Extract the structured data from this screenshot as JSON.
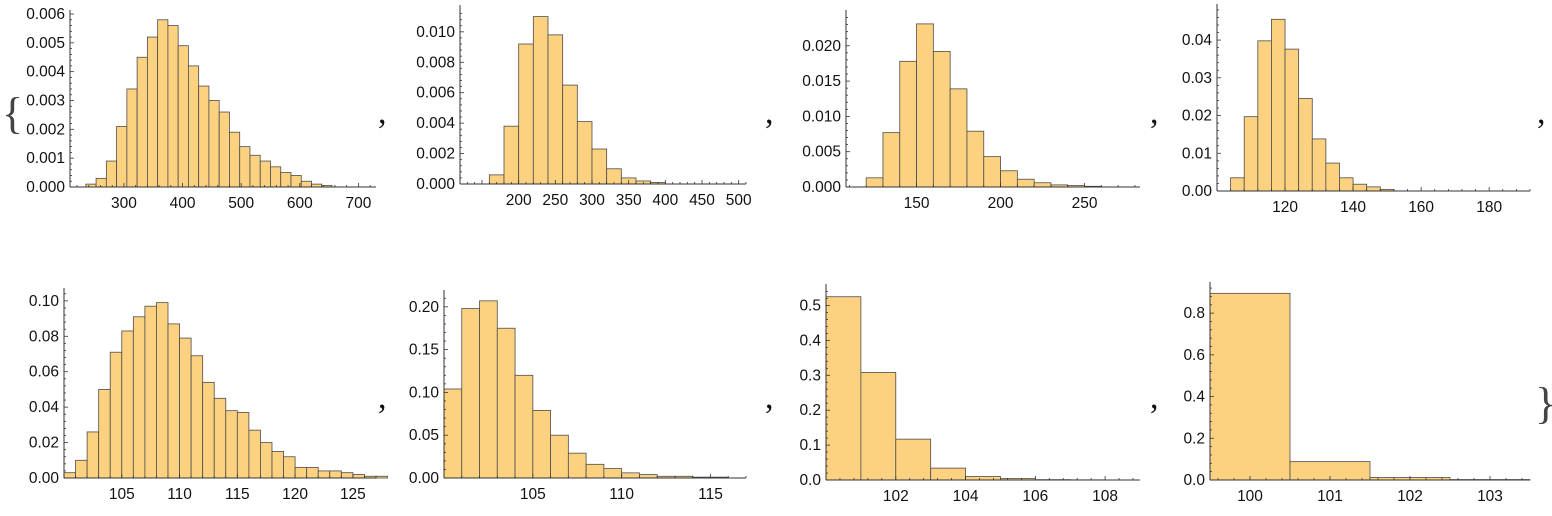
{
  "separators": {
    "comma": ",",
    "open_brace": "{",
    "close_brace": "}"
  },
  "colors": {
    "bar_fill": "#fcd17f",
    "bar_stroke": "#4d4d4d",
    "axis": "#333333"
  },
  "chart_data": [
    {
      "type": "bar",
      "bin_start": 235,
      "bin_width": 17.5,
      "values": [
        0.0001,
        0.0003,
        0.0009,
        0.0021,
        0.0034,
        0.0045,
        0.0052,
        0.0058,
        0.0056,
        0.0049,
        0.0042,
        0.0035,
        0.003,
        0.0026,
        0.0019,
        0.0014,
        0.0011,
        0.0009,
        0.0007,
        0.0005,
        0.0004,
        0.0002,
        0.0001,
        5e-05
      ],
      "xlim": [
        208,
        730
      ],
      "ylim": [
        0,
        0.006
      ],
      "xticks": [
        300,
        400,
        500,
        600,
        700
      ],
      "xtick_labels": [
        "300",
        "400",
        "500",
        "600",
        "700"
      ],
      "yticks": [
        0,
        0.001,
        0.002,
        0.003,
        0.004,
        0.005,
        0.006
      ],
      "ytick_labels": [
        "0.000",
        "0.001",
        "0.002",
        "0.003",
        "0.004",
        "0.005",
        "0.006"
      ]
    },
    {
      "type": "bar",
      "bin_start": 160,
      "bin_width": 20,
      "values": [
        0.0006,
        0.0038,
        0.0092,
        0.011,
        0.0098,
        0.0065,
        0.0041,
        0.0023,
        0.001,
        0.0004,
        0.0002,
        0.0001
      ],
      "xlim": [
        120,
        510
      ],
      "ylim": [
        0,
        0.0115
      ],
      "xticks": [
        200,
        250,
        300,
        350,
        400,
        450,
        500
      ],
      "xtick_labels": [
        "200",
        "250",
        "300",
        "350",
        "400",
        "450",
        "500"
      ],
      "yticks": [
        0,
        0.002,
        0.004,
        0.006,
        0.008,
        0.01
      ],
      "ytick_labels": [
        "0.000",
        "0.002",
        "0.004",
        "0.006",
        "0.008",
        "0.010"
      ]
    },
    {
      "type": "bar",
      "bin_start": 120,
      "bin_width": 10,
      "values": [
        0.0013,
        0.0077,
        0.0178,
        0.0231,
        0.0192,
        0.0139,
        0.0079,
        0.0043,
        0.0023,
        0.0011,
        0.0006,
        0.0003,
        0.0002,
        0.0001
      ],
      "xlim": [
        108,
        283
      ],
      "ylim": [
        0,
        0.0245
      ],
      "xticks": [
        150,
        200,
        250
      ],
      "xtick_labels": [
        "150",
        "200",
        "250"
      ],
      "yticks": [
        0,
        0.005,
        0.01,
        0.015,
        0.02
      ],
      "ytick_labels": [
        "0.000",
        "0.005",
        "0.010",
        "0.015",
        "0.020"
      ]
    },
    {
      "type": "bar",
      "bin_start": 104,
      "bin_width": 4,
      "values": [
        0.0035,
        0.0197,
        0.0398,
        0.0455,
        0.0376,
        0.0245,
        0.0138,
        0.0074,
        0.0035,
        0.0018,
        0.0011,
        0.0004
      ],
      "xlim": [
        100,
        192
      ],
      "ylim": [
        0,
        0.0485
      ],
      "xticks": [
        120,
        140,
        160,
        180
      ],
      "xtick_labels": [
        "120",
        "140",
        "160",
        "180"
      ],
      "yticks": [
        0,
        0.01,
        0.02,
        0.03,
        0.04
      ],
      "ytick_labels": [
        "0.00",
        "0.01",
        "0.02",
        "0.03",
        "0.04"
      ]
    },
    {
      "type": "bar",
      "bin_start": 100,
      "bin_width": 1,
      "values": [
        0.003,
        0.01,
        0.026,
        0.05,
        0.071,
        0.083,
        0.091,
        0.097,
        0.099,
        0.087,
        0.079,
        0.069,
        0.054,
        0.045,
        0.038,
        0.037,
        0.027,
        0.02,
        0.015,
        0.012,
        0.006,
        0.006,
        0.004,
        0.004,
        0.003,
        0.002,
        0.001,
        0.001
      ],
      "xlim": [
        100,
        127
      ],
      "ylim": [
        0,
        0.105
      ],
      "xticks": [
        105,
        110,
        115,
        120,
        125
      ],
      "xtick_labels": [
        "105",
        "110",
        "115",
        "120",
        "125"
      ],
      "yticks": [
        0,
        0.02,
        0.04,
        0.06,
        0.08,
        0.1
      ],
      "ytick_labels": [
        "0.00",
        "0.02",
        "0.04",
        "0.06",
        "0.08",
        "0.10"
      ]
    },
    {
      "type": "bar",
      "bin_start": 100,
      "bin_width": 1,
      "values": [
        0.104,
        0.198,
        0.207,
        0.175,
        0.12,
        0.079,
        0.05,
        0.029,
        0.016,
        0.011,
        0.006,
        0.004,
        0.002,
        0.002,
        0.001,
        0.001
      ],
      "xlim": [
        100,
        117
      ],
      "ylim": [
        0,
        0.215
      ],
      "xticks": [
        105,
        110,
        115
      ],
      "xtick_labels": [
        "105",
        "110",
        "115"
      ],
      "yticks": [
        0,
        0.05,
        0.1,
        0.15,
        0.2
      ],
      "ytick_labels": [
        "0.00",
        "0.05",
        "0.10",
        "0.15",
        "0.20"
      ]
    },
    {
      "type": "bar",
      "bin_start": 100,
      "bin_width": 1,
      "values": [
        0.525,
        0.308,
        0.117,
        0.034,
        0.01,
        0.004,
        0.001,
        0.0005
      ],
      "xlim": [
        100,
        109
      ],
      "ylim": [
        0,
        0.55
      ],
      "xticks": [
        102,
        104,
        106,
        108
      ],
      "xtick_labels": [
        "102",
        "104",
        "106",
        "108"
      ],
      "yticks": [
        0,
        0.1,
        0.2,
        0.3,
        0.4,
        0.5
      ],
      "ytick_labels": [
        "0.0",
        "0.1",
        "0.2",
        "0.3",
        "0.4",
        "0.5"
      ]
    },
    {
      "type": "bar",
      "bin_start": 99.5,
      "bin_width": 1,
      "values": [
        0.895,
        0.088,
        0.012,
        0.002
      ],
      "xlim": [
        99.5,
        103.5
      ],
      "ylim": [
        0,
        0.93
      ],
      "xticks": [
        100,
        101,
        102,
        103
      ],
      "xtick_labels": [
        "100",
        "101",
        "102",
        "103"
      ],
      "yticks": [
        0,
        0.2,
        0.4,
        0.6,
        0.8
      ],
      "ytick_labels": [
        "0.0",
        "0.2",
        "0.4",
        "0.6",
        "0.8"
      ]
    }
  ]
}
